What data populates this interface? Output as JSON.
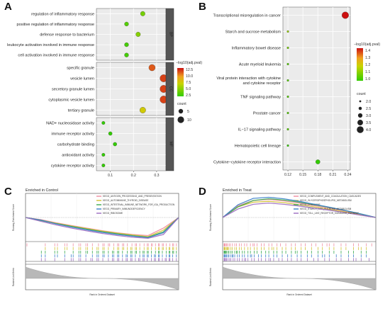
{
  "panels": {
    "a": "A",
    "b": "B",
    "c": "C",
    "d": "D"
  },
  "chart_data": [
    {
      "panel": "A",
      "type": "scatter",
      "subtype": "faceted-dotplot",
      "xlim": [
        0.04,
        0.34
      ],
      "xticks": [
        0.1,
        0.2,
        0.3
      ],
      "xtick_labels": [
        "0.1",
        "0.2",
        "0.3"
      ],
      "grid": true,
      "facets": [
        {
          "name": "BP",
          "rows": [
            {
              "term": "regulation of inflammatory response",
              "x": 0.24,
              "count": 5,
              "pval": 4.5
            },
            {
              "term": "positive regulation of inflammatory response",
              "x": 0.17,
              "count": 4,
              "pval": 3.5
            },
            {
              "term": "defense response to bacterium",
              "x": 0.22,
              "count": 5,
              "pval": 5.0
            },
            {
              "term": "leukocyte activation involved in immune response",
              "x": 0.17,
              "count": 4,
              "pval": 3.0
            },
            {
              "term": "cell activation involved in immune response",
              "x": 0.17,
              "count": 4,
              "pval": 3.0
            }
          ]
        },
        {
          "name": "CC",
          "rows": [
            {
              "term": "specific granule",
              "x": 0.28,
              "count": 9,
              "pval": 11.0
            },
            {
              "term": "vesicle lumen",
              "x": 0.33,
              "count": 11,
              "pval": 11.5
            },
            {
              "term": "secretory granule lumen",
              "x": 0.33,
              "count": 11,
              "pval": 11.5
            },
            {
              "term": "cytoplasmic vesicle lumen",
              "x": 0.33,
              "count": 11,
              "pval": 11.5
            },
            {
              "term": "tertiary granule",
              "x": 0.24,
              "count": 8,
              "pval": 7.5
            }
          ]
        },
        {
          "name": "MF",
          "rows": [
            {
              "term": "NAD+ nucleosidase activity",
              "x": 0.07,
              "count": 2,
              "pval": 2.5
            },
            {
              "term": "immune receptor activity",
              "x": 0.1,
              "count": 3,
              "pval": 2.5
            },
            {
              "term": "carbohydrate binding",
              "x": 0.12,
              "count": 3,
              "pval": 2.5
            },
            {
              "term": "antioxidant activity",
              "x": 0.07,
              "count": 2,
              "pval": 2.5
            },
            {
              "term": "cytokine receptor activity",
              "x": 0.07,
              "count": 2,
              "pval": 2.5
            }
          ]
        }
      ],
      "color_legend": {
        "title": "−log10(adj.pval)",
        "ticks": [
          "12.5",
          "10.0",
          "7.5",
          "5.0",
          "2.5"
        ],
        "range": [
          2.5,
          12.5
        ],
        "low_color": "#33cc00",
        "high_color": "#cc1111"
      },
      "size_legend": {
        "title": "count",
        "ticks": [
          "5",
          "10"
        ]
      }
    },
    {
      "panel": "B",
      "type": "scatter",
      "subtype": "dotplot",
      "xlim": [
        0.11,
        0.245
      ],
      "xticks": [
        0.12,
        0.15,
        0.18,
        0.21,
        0.24
      ],
      "xtick_labels": [
        "0.12",
        "0.15",
        "0.18",
        "0.21",
        "0.24"
      ],
      "grid": true,
      "rows": [
        {
          "term": "Transcriptional misregulation in cancer",
          "x": 0.235,
          "count": 4,
          "pval": 1.45
        },
        {
          "term": "Starch and sucrose metabolism",
          "x": 0.12,
          "count": 2,
          "pval": 1.1
        },
        {
          "term": "Inflammatory bowel disease",
          "x": 0.12,
          "count": 2,
          "pval": 1.05
        },
        {
          "term": "Acute myeloid leukemia",
          "x": 0.12,
          "count": 2,
          "pval": 1.0
        },
        {
          "term": "Viral protein interaction with cytokine and cytokine receptor",
          "x": 0.12,
          "count": 2,
          "pval": 1.0
        },
        {
          "term": "TNF signaling pathway",
          "x": 0.12,
          "count": 2,
          "pval": 1.0
        },
        {
          "term": "Prostate cancer",
          "x": 0.12,
          "count": 2,
          "pval": 1.0
        },
        {
          "term": "IL−17 signaling pathway",
          "x": 0.12,
          "count": 2,
          "pval": 1.0
        },
        {
          "term": "Hematopoietic cell lineage",
          "x": 0.12,
          "count": 2,
          "pval": 0.95
        },
        {
          "term": "Cytokine−cytokine receptor interaction",
          "x": 0.18,
          "count": 3,
          "pval": 0.95
        }
      ],
      "color_legend": {
        "title": "−log10(adj.pval)",
        "ticks": [
          "1.4",
          "1.3",
          "1.2",
          "1.1",
          "1.0"
        ],
        "range": [
          0.95,
          1.45
        ],
        "low_color": "#33cc00",
        "high_color": "#cc1111"
      },
      "size_legend": {
        "title": "count",
        "ticks": [
          "2.0",
          "2.5",
          "3.0",
          "3.5",
          "4.0"
        ]
      }
    },
    {
      "panel": "C",
      "type": "line",
      "subtype": "gsea",
      "title": "Enriched in Control",
      "ylabel": "Running Enrichment Score",
      "ylabel_lower": "Ranked List Metric",
      "xlabel": "Rank in Ordered Dataset",
      "series": [
        {
          "name": "KEGG_ANTIGEN_PROCESSING_AND_PRESENTATION",
          "color": "#f08ca0",
          "y": [
            0.0,
            -0.1,
            -0.25,
            -0.38,
            -0.5,
            -0.62,
            -0.72,
            -0.8,
            -0.85,
            -0.5,
            0.0
          ]
        },
        {
          "name": "KEGG_AUTOIMMUNE_THYROID_DISEASE",
          "color": "#d0c030",
          "y": [
            0.0,
            -0.12,
            -0.27,
            -0.4,
            -0.52,
            -0.64,
            -0.74,
            -0.82,
            -0.9,
            -0.6,
            0.0
          ]
        },
        {
          "name": "KEGG_INTESTINAL_IMMUNE_NETWORK_FOR_IGA_PRODUCTION",
          "color": "#3aaa50",
          "y": [
            0.0,
            -0.14,
            -0.29,
            -0.42,
            -0.55,
            -0.67,
            -0.77,
            -0.86,
            -0.93,
            -0.68,
            0.0
          ]
        },
        {
          "name": "KEGG_PRIMARY_IMMUNODEFICIENCY",
          "color": "#3a80c8",
          "y": [
            0.0,
            -0.12,
            -0.3,
            -0.45,
            -0.58,
            -0.7,
            -0.8,
            -0.88,
            -0.95,
            -0.72,
            0.0
          ]
        },
        {
          "name": "KEGG_RIBOSOME",
          "color": "#9b6bc0",
          "y": [
            0.0,
            -0.18,
            -0.35,
            -0.5,
            -0.63,
            -0.75,
            -0.85,
            -0.93,
            -0.98,
            -0.8,
            0.0
          ]
        }
      ]
    },
    {
      "panel": "D",
      "type": "line",
      "subtype": "gsea",
      "title": "Enriched in Treat",
      "ylabel": "Running Enrichment Score",
      "ylabel_lower": "Ranked List Metric",
      "xlabel": "Rank in Ordered Dataset",
      "series": [
        {
          "name": "KEGG_COMPLEMENT_AND_COAGULATION_CASCADES",
          "color": "#f08ca0",
          "y": [
            0.0,
            0.55,
            0.8,
            0.85,
            0.78,
            0.68,
            0.56,
            0.44,
            0.3,
            0.15,
            0.0
          ]
        },
        {
          "name": "KEGG_GLYCEROPHOSPHOLIPID_METABOLISM",
          "color": "#d0c030",
          "y": [
            0.0,
            0.5,
            0.72,
            0.76,
            0.7,
            0.6,
            0.5,
            0.38,
            0.26,
            0.12,
            0.0
          ]
        },
        {
          "name": "KEGG_LYSOSOME",
          "color": "#3aaa50",
          "y": [
            0.0,
            0.5,
            0.8,
            0.88,
            0.82,
            0.72,
            0.6,
            0.47,
            0.33,
            0.17,
            0.0
          ]
        },
        {
          "name": "KEGG_STARCH_AND_SUCROSE_METABOLISM",
          "color": "#3a80c8",
          "y": [
            0.0,
            0.6,
            0.9,
            0.95,
            0.88,
            0.76,
            0.62,
            0.48,
            0.33,
            0.17,
            0.0
          ]
        },
        {
          "name": "KEGG_TOLL_LIKE_RECEPTOR_SIGNALING_PATHWAY",
          "color": "#9b6bc0",
          "y": [
            0.0,
            0.4,
            0.62,
            0.68,
            0.62,
            0.54,
            0.44,
            0.34,
            0.23,
            0.11,
            0.0
          ]
        }
      ]
    }
  ]
}
